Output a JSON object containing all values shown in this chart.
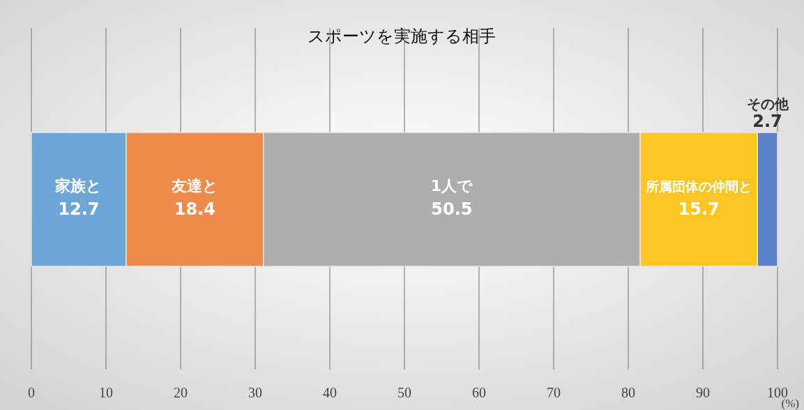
{
  "chart_data": {
    "type": "bar",
    "title": "スポーツを実施する相手",
    "orientation": "horizontal",
    "stacked": true,
    "categories": [
      null
    ],
    "series": [
      {
        "name": "家族と",
        "color": "#6fa6d8",
        "values": [
          12.7
        ]
      },
      {
        "name": "友達と",
        "color": "#ec8b4a",
        "values": [
          18.4
        ]
      },
      {
        "name": "1人で",
        "color": "#adadad",
        "values": [
          50.5
        ]
      },
      {
        "name": "所属団体の仲間と",
        "color": "#fbc524",
        "values": [
          15.7
        ]
      },
      {
        "name": "その他",
        "color": "#5b7fc8",
        "values": [
          2.7
        ]
      }
    ],
    "xlim": [
      0,
      100
    ],
    "xticks": [
      0,
      10,
      20,
      30,
      40,
      50,
      60,
      70,
      80,
      90,
      100
    ],
    "xlabel": "(%)",
    "grid": "x",
    "data_labels": true
  }
}
